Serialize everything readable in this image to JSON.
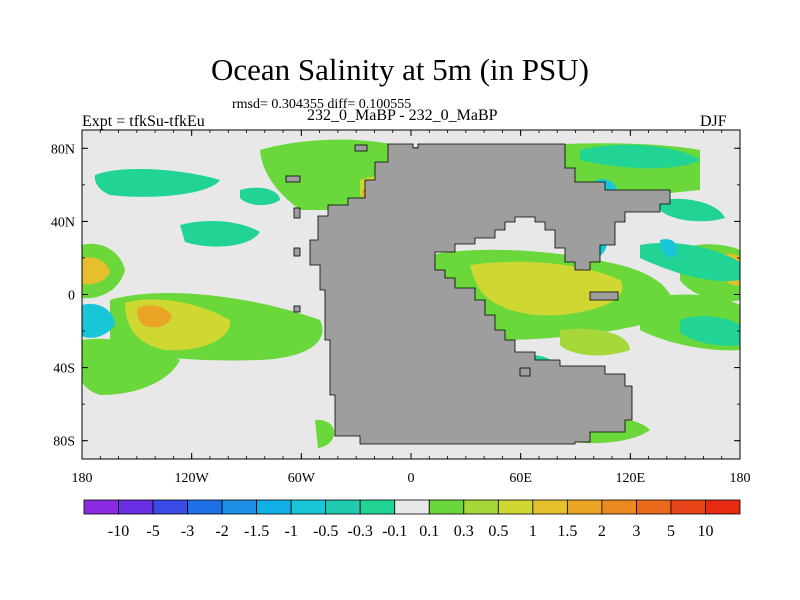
{
  "header": {
    "title": "Ocean Salinity at 5m (in PSU)",
    "stats": "rmsd= 0.304355 diff= 0.100555",
    "left_label": "Expt = tfkSu-tfkEu",
    "center_label": "232_0_MaBP - 232_0_MaBP",
    "right_label": "DJF"
  },
  "map": {
    "projection": "cylindrical equidistant",
    "lon_range": [
      -180,
      180
    ],
    "lat_range": [
      -90,
      90
    ],
    "lon_ticks": [
      {
        "value": -180,
        "label": "180"
      },
      {
        "value": -120,
        "label": "120W"
      },
      {
        "value": -60,
        "label": "60W"
      },
      {
        "value": 0,
        "label": "0"
      },
      {
        "value": 60,
        "label": "60E"
      },
      {
        "value": 120,
        "label": "120E"
      },
      {
        "value": 180,
        "label": "180"
      }
    ],
    "lat_ticks": [
      {
        "value": 80,
        "label": "80N"
      },
      {
        "value": 40,
        "label": "40N"
      },
      {
        "value": 0,
        "label": "0"
      },
      {
        "value": -40,
        "label": "40S"
      },
      {
        "value": -80,
        "label": "80S"
      }
    ],
    "land_color": "#9e9e9e",
    "background_color": "#e8e8e8"
  },
  "colorbar": {
    "labels": [
      "-10",
      "-5",
      "-3",
      "-2",
      "-1.5",
      "-1",
      "-0.5",
      "-0.3",
      "-0.1",
      "0.1",
      "0.3",
      "0.5",
      "1",
      "1.5",
      "2",
      "3",
      "5",
      "10"
    ],
    "colors": [
      "#8a2be2",
      "#6a2ee3",
      "#3a4ae6",
      "#1f6fe6",
      "#1e90e8",
      "#10b0e6",
      "#18c6d8",
      "#20ccb0",
      "#22d494",
      "#e8e8e8",
      "#6ad83a",
      "#a6d83a",
      "#cfd833",
      "#e5c02c",
      "#eba526",
      "#eb8a1f",
      "#e86a1a",
      "#e8441a",
      "#e82a12"
    ]
  }
}
